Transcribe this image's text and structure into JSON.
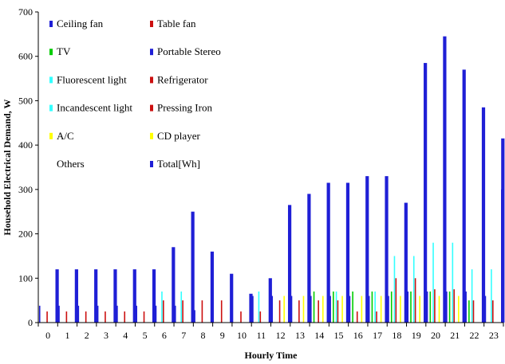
{
  "chart_data": {
    "type": "bar",
    "title": "",
    "xlabel": "Hourly Time",
    "ylabel": "Household Electrical Demand, W",
    "ylim": [
      0,
      700
    ],
    "yticks": [
      0,
      100,
      200,
      300,
      400,
      500,
      600,
      700
    ],
    "grid": false,
    "legend_position": "top-left",
    "categories": [
      "0",
      "1",
      "2",
      "3",
      "4",
      "5",
      "6",
      "7",
      "8",
      "9",
      "10",
      "11",
      "12",
      "13",
      "14",
      "15",
      "16",
      "17",
      "18",
      "19",
      "20",
      "21",
      "22",
      "23"
    ],
    "series": [
      {
        "name": "Ceiling fan",
        "color": "#1f1fd6",
        "values": [
          38,
          38,
          38,
          38,
          38,
          38,
          38,
          38,
          28,
          0,
          0,
          60,
          60,
          60,
          60,
          60,
          60,
          60,
          60,
          70,
          70,
          70,
          70,
          60
        ]
      },
      {
        "name": "Table fan",
        "color": "#cc1010",
        "values": [
          0,
          0,
          0,
          0,
          0,
          0,
          0,
          0,
          0,
          0,
          0,
          0,
          0,
          0,
          0,
          0,
          0,
          0,
          0,
          0,
          0,
          0,
          0,
          0
        ]
      },
      {
        "name": "TV",
        "color": "#00cc00",
        "values": [
          0,
          0,
          0,
          0,
          0,
          0,
          0,
          0,
          0,
          0,
          0,
          0,
          0,
          0,
          70,
          70,
          70,
          70,
          70,
          70,
          70,
          70,
          50,
          0
        ]
      },
      {
        "name": "Portable Stereo",
        "color": "#1f1fd6",
        "values": [
          0,
          0,
          0,
          0,
          0,
          0,
          0,
          0,
          0,
          0,
          0,
          0,
          0,
          0,
          0,
          0,
          0,
          0,
          0,
          0,
          0,
          0,
          0,
          0
        ]
      },
      {
        "name": "Fluorescent light",
        "color": "#33ffff",
        "values": [
          0,
          0,
          0,
          0,
          0,
          0,
          70,
          70,
          0,
          0,
          0,
          70,
          0,
          0,
          0,
          70,
          0,
          70,
          150,
          150,
          180,
          180,
          120,
          120
        ]
      },
      {
        "name": "Refrigerator",
        "color": "#cc1010",
        "values": [
          25,
          25,
          25,
          25,
          25,
          25,
          50,
          50,
          50,
          50,
          25,
          25,
          50,
          50,
          50,
          50,
          25,
          25,
          100,
          100,
          75,
          75,
          50,
          50
        ]
      },
      {
        "name": "Incandescent light",
        "color": "#33ffff",
        "values": [
          0,
          0,
          0,
          0,
          0,
          0,
          0,
          0,
          0,
          0,
          0,
          0,
          0,
          0,
          0,
          0,
          0,
          0,
          0,
          0,
          0,
          0,
          0,
          0
        ]
      },
      {
        "name": "Pressing Iron",
        "color": "#cc1010",
        "values": [
          0,
          0,
          0,
          0,
          0,
          0,
          0,
          0,
          0,
          0,
          0,
          0,
          0,
          0,
          0,
          0,
          0,
          0,
          0,
          0,
          0,
          0,
          0,
          0
        ]
      },
      {
        "name": "A/C",
        "color": "#ffff00",
        "values": [
          0,
          0,
          0,
          0,
          0,
          0,
          0,
          0,
          0,
          0,
          0,
          0,
          60,
          60,
          60,
          60,
          60,
          60,
          60,
          60,
          60,
          60,
          0,
          0
        ]
      },
      {
        "name": "CD player",
        "color": "#ffff00",
        "values": [
          0,
          0,
          0,
          0,
          0,
          0,
          0,
          0,
          0,
          0,
          0,
          0,
          0,
          0,
          0,
          0,
          0,
          0,
          0,
          0,
          0,
          0,
          0,
          0
        ]
      },
      {
        "name": "Others",
        "color": "#ffffff",
        "values": [
          0,
          0,
          0,
          0,
          0,
          0,
          0,
          0,
          0,
          0,
          0,
          0,
          0,
          0,
          0,
          0,
          0,
          0,
          0,
          0,
          0,
          0,
          0,
          0
        ]
      },
      {
        "name": "Total[Wh]",
        "color": "#1f1fd6",
        "values": [
          120,
          120,
          120,
          120,
          120,
          120,
          170,
          250,
          160,
          110,
          65,
          100,
          265,
          290,
          315,
          315,
          330,
          330,
          270,
          585,
          645,
          570,
          485,
          415
        ]
      }
    ],
    "last_total_partial": 300
  },
  "legend": [
    {
      "label": "Ceiling fan",
      "color": "#1f1fd6"
    },
    {
      "label": "Table fan",
      "color": "#cc1010"
    },
    {
      "label": "TV",
      "color": "#00cc00"
    },
    {
      "label": "Portable Stereo",
      "color": "#1f1fd6"
    },
    {
      "label": "Fluorescent light",
      "color": "#33ffff"
    },
    {
      "label": "Refrigerator",
      "color": "#cc1010"
    },
    {
      "label": "Incandescent light",
      "color": "#33ffff"
    },
    {
      "label": "Pressing Iron",
      "color": "#cc1010"
    },
    {
      "label": "A/C",
      "color": "#ffff00"
    },
    {
      "label": "CD player",
      "color": "#ffff00"
    },
    {
      "label": "Others",
      "color": "#ffffff"
    },
    {
      "label": "Total[Wh]",
      "color": "#1f1fd6"
    }
  ]
}
